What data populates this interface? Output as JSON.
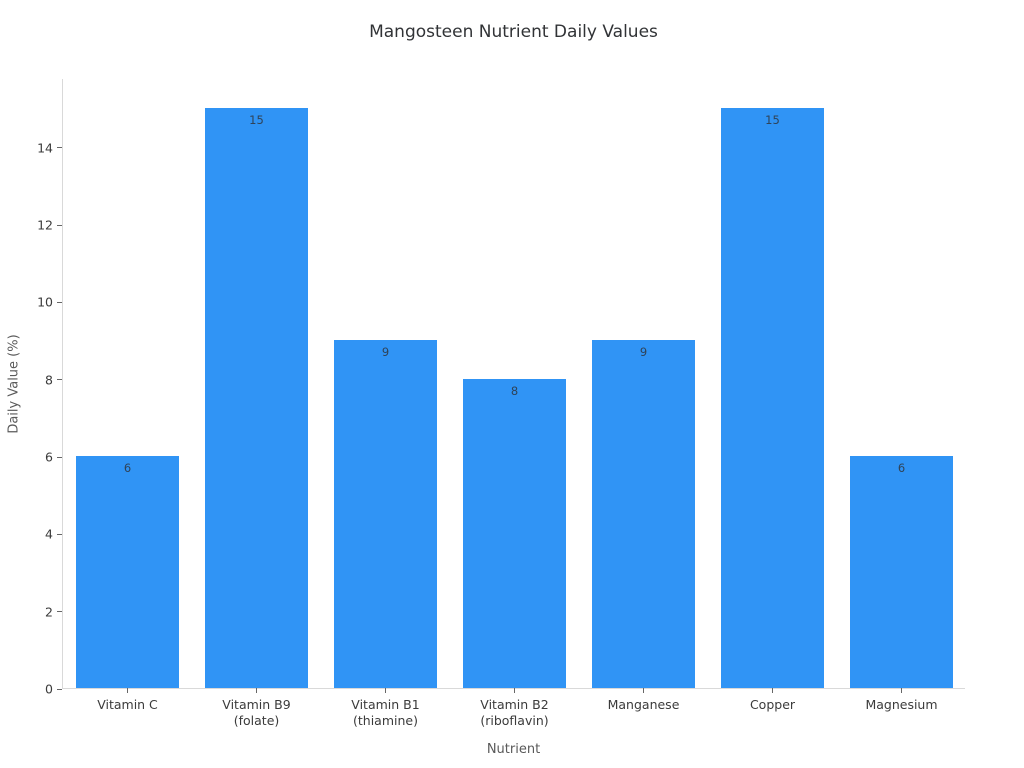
{
  "chart_data": {
    "type": "bar",
    "title": "Mangosteen Nutrient Daily Values",
    "xlabel": "Nutrient",
    "ylabel": "Daily Value (%)",
    "categories": [
      {
        "label": "Vitamin C",
        "sublabel": ""
      },
      {
        "label": "Vitamin B9",
        "sublabel": "(folate)"
      },
      {
        "label": "Vitamin B1",
        "sublabel": "(thiamine)"
      },
      {
        "label": "Vitamin B2",
        "sublabel": "(riboflavin)"
      },
      {
        "label": "Manganese",
        "sublabel": ""
      },
      {
        "label": "Copper",
        "sublabel": ""
      },
      {
        "label": "Magnesium",
        "sublabel": ""
      }
    ],
    "values": [
      6,
      15,
      9,
      8,
      9,
      15,
      6
    ],
    "yticks": [
      0,
      2,
      4,
      6,
      8,
      10,
      12,
      14
    ],
    "ylim": [
      0,
      15.78
    ],
    "grid": false,
    "legend": "none",
    "bar_value_labels": "inside-top",
    "colors": {
      "background": "#FFFFFF",
      "bar": "#3094F5",
      "axis_line": "#D9D9D9",
      "tick": "#666666",
      "tick_label": "#3B3B3B",
      "axis_title": "#5A5A5A",
      "title": "#313336",
      "value_label": "#2F4358"
    }
  }
}
